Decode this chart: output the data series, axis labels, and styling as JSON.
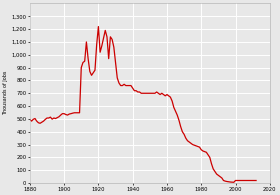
{
  "title": "",
  "ylabel": "Thousands of Jobs",
  "xlabel": "",
  "xlim": [
    1880,
    2020
  ],
  "ylim": [
    0,
    1400
  ],
  "yticks": [
    0,
    100,
    200,
    300,
    400,
    500,
    600,
    700,
    800,
    900,
    1000,
    1100,
    1200,
    1300
  ],
  "xticks": [
    1880,
    1900,
    1920,
    1940,
    1960,
    1980,
    2000,
    2020
  ],
  "line_color": "#cc0000",
  "line_width": 0.9,
  "background_color": "#e8e8e8",
  "grid_color": "#ffffff",
  "data": [
    [
      1880,
      496
    ],
    [
      1881,
      483
    ],
    [
      1882,
      497
    ],
    [
      1883,
      503
    ],
    [
      1884,
      483
    ],
    [
      1885,
      470
    ],
    [
      1886,
      466
    ],
    [
      1887,
      474
    ],
    [
      1888,
      483
    ],
    [
      1889,
      496
    ],
    [
      1890,
      507
    ],
    [
      1891,
      507
    ],
    [
      1892,
      514
    ],
    [
      1893,
      498
    ],
    [
      1894,
      507
    ],
    [
      1895,
      503
    ],
    [
      1896,
      510
    ],
    [
      1897,
      517
    ],
    [
      1898,
      530
    ],
    [
      1899,
      541
    ],
    [
      1900,
      541
    ],
    [
      1901,
      534
    ],
    [
      1902,
      530
    ],
    [
      1903,
      538
    ],
    [
      1904,
      541
    ],
    [
      1905,
      545
    ],
    [
      1906,
      548
    ],
    [
      1907,
      548
    ],
    [
      1908,
      548
    ],
    [
      1909,
      548
    ],
    [
      1910,
      900
    ],
    [
      1911,
      940
    ],
    [
      1912,
      950
    ],
    [
      1913,
      1100
    ],
    [
      1914,
      970
    ],
    [
      1915,
      870
    ],
    [
      1916,
      840
    ],
    [
      1917,
      860
    ],
    [
      1918,
      880
    ],
    [
      1919,
      1080
    ],
    [
      1920,
      1220
    ],
    [
      1921,
      1020
    ],
    [
      1922,
      1070
    ],
    [
      1923,
      1130
    ],
    [
      1924,
      1190
    ],
    [
      1925,
      1140
    ],
    [
      1926,
      970
    ],
    [
      1927,
      1140
    ],
    [
      1928,
      1120
    ],
    [
      1929,
      1060
    ],
    [
      1930,
      940
    ],
    [
      1931,
      820
    ],
    [
      1932,
      780
    ],
    [
      1933,
      760
    ],
    [
      1934,
      760
    ],
    [
      1935,
      770
    ],
    [
      1936,
      760
    ],
    [
      1937,
      760
    ],
    [
      1938,
      760
    ],
    [
      1939,
      760
    ],
    [
      1940,
      740
    ],
    [
      1941,
      720
    ],
    [
      1942,
      720
    ],
    [
      1943,
      710
    ],
    [
      1944,
      710
    ],
    [
      1945,
      700
    ],
    [
      1946,
      700
    ],
    [
      1947,
      700
    ],
    [
      1948,
      700
    ],
    [
      1949,
      700
    ],
    [
      1950,
      700
    ],
    [
      1951,
      700
    ],
    [
      1952,
      700
    ],
    [
      1953,
      700
    ],
    [
      1954,
      710
    ],
    [
      1955,
      700
    ],
    [
      1956,
      690
    ],
    [
      1957,
      700
    ],
    [
      1958,
      690
    ],
    [
      1959,
      680
    ],
    [
      1960,
      690
    ],
    [
      1961,
      680
    ],
    [
      1962,
      670
    ],
    [
      1963,
      640
    ],
    [
      1964,
      590
    ],
    [
      1965,
      560
    ],
    [
      1966,
      530
    ],
    [
      1967,
      490
    ],
    [
      1968,
      440
    ],
    [
      1969,
      400
    ],
    [
      1970,
      380
    ],
    [
      1971,
      350
    ],
    [
      1972,
      330
    ],
    [
      1973,
      320
    ],
    [
      1974,
      310
    ],
    [
      1975,
      300
    ],
    [
      1976,
      295
    ],
    [
      1977,
      290
    ],
    [
      1978,
      285
    ],
    [
      1979,
      280
    ],
    [
      1980,
      260
    ],
    [
      1981,
      250
    ],
    [
      1982,
      245
    ],
    [
      1983,
      240
    ],
    [
      1984,
      220
    ],
    [
      1985,
      200
    ],
    [
      1986,
      150
    ],
    [
      1987,
      110
    ],
    [
      1988,
      90
    ],
    [
      1989,
      70
    ],
    [
      1990,
      60
    ],
    [
      1991,
      50
    ],
    [
      1992,
      40
    ],
    [
      1993,
      20
    ],
    [
      1994,
      15
    ],
    [
      1995,
      12
    ],
    [
      1996,
      10
    ],
    [
      1997,
      8
    ],
    [
      1998,
      7
    ],
    [
      1999,
      6
    ],
    [
      2000,
      20
    ],
    [
      2001,
      20
    ],
    [
      2002,
      20
    ],
    [
      2003,
      20
    ],
    [
      2004,
      20
    ],
    [
      2005,
      20
    ],
    [
      2006,
      20
    ],
    [
      2007,
      20
    ],
    [
      2008,
      20
    ],
    [
      2009,
      20
    ],
    [
      2010,
      20
    ],
    [
      2011,
      20
    ],
    [
      2012,
      20
    ]
  ]
}
